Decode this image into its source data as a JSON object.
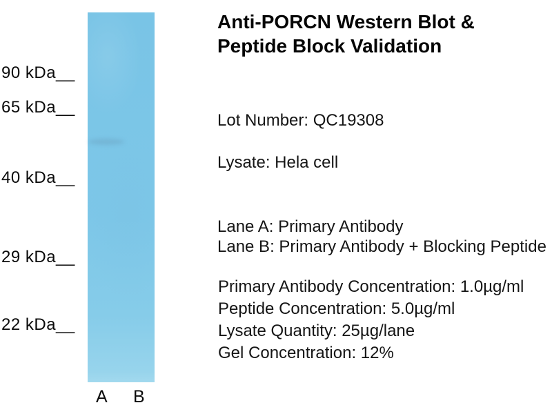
{
  "title": {
    "line1": "Anti-PORCN Western Blot &",
    "line2": "Peptide Block Validation"
  },
  "info": {
    "lot_number": "Lot Number: QC19308",
    "lysate": "Lysate: Hela cell",
    "lane_a_desc": "Lane A: Primary Antibody",
    "lane_b_desc": "Lane B: Primary Antibody + Blocking Peptide",
    "primary_antibody_concentration": "Primary Antibody Concentration: 1.0µg/ml",
    "peptide_concentration": "Peptide Concentration: 5.0µg/ml",
    "lysate_quantity": "Lysate Quantity: 25µg/lane",
    "gel_concentration": "Gel Concentration: 12%"
  },
  "blot": {
    "markers": [
      {
        "label": "90 kDa__"
      },
      {
        "label": "65 kDa__"
      },
      {
        "label": "40 kDa__"
      },
      {
        "label": "29 kDa__"
      },
      {
        "label": "22 kDa__"
      }
    ],
    "lane_labels": [
      "A",
      "B"
    ],
    "membrane_color": "#7dc7e8"
  }
}
